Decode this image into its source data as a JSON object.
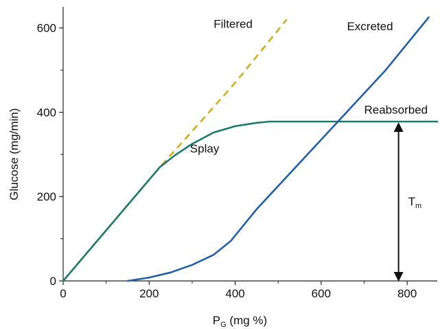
{
  "chart_data": {
    "type": "line",
    "title": "",
    "xlabel_main": "P",
    "xlabel_sub": "G",
    "xlabel_rest": " (mg %)",
    "ylabel": "Glucose (mg/min)",
    "xlim": [
      0,
      870
    ],
    "ylim": [
      0,
      650
    ],
    "xticks": [
      0,
      200,
      400,
      600,
      800
    ],
    "yticks": [
      0,
      200,
      400,
      600
    ],
    "xtick_labels": [
      "0",
      "200",
      "400",
      "600",
      "800"
    ],
    "ytick_labels": [
      "0",
      "200",
      "400",
      "600"
    ],
    "grid": false,
    "series": [
      {
        "name": "Filtered",
        "style": "dashed",
        "color": "#d4ac1e",
        "points": [
          [
            0,
            0
          ],
          [
            225,
            270
          ],
          [
            300,
            355
          ],
          [
            400,
            470
          ],
          [
            520,
            620
          ]
        ]
      },
      {
        "name": "Reabsorbed",
        "style": "solid",
        "color": "#1b7a6e",
        "points": [
          [
            0,
            0
          ],
          [
            225,
            270
          ],
          [
            260,
            298
          ],
          [
            300,
            325
          ],
          [
            350,
            352
          ],
          [
            400,
            367
          ],
          [
            450,
            375
          ],
          [
            480,
            378
          ],
          [
            870,
            378
          ]
        ]
      },
      {
        "name": "Excreted",
        "style": "solid",
        "color": "#1f5fa8",
        "points": [
          [
            150,
            0
          ],
          [
            200,
            8
          ],
          [
            250,
            20
          ],
          [
            300,
            38
          ],
          [
            350,
            62
          ],
          [
            390,
            95
          ],
          [
            450,
            170
          ],
          [
            550,
            280
          ],
          [
            650,
            390
          ],
          [
            750,
            500
          ],
          [
            850,
            625
          ]
        ]
      }
    ],
    "annotations": [
      {
        "label": "Filtered",
        "x": 350,
        "y": 600
      },
      {
        "label": "Excreted",
        "x": 660,
        "y": 595
      },
      {
        "label": "Reabsorbed",
        "x": 700,
        "y": 397
      },
      {
        "label": "Splay",
        "x": 295,
        "y": 305
      }
    ],
    "tm_marker": {
      "label_main": "T",
      "label_sub": "m",
      "x": 780,
      "y_from": 0,
      "y_to": 378
    }
  }
}
